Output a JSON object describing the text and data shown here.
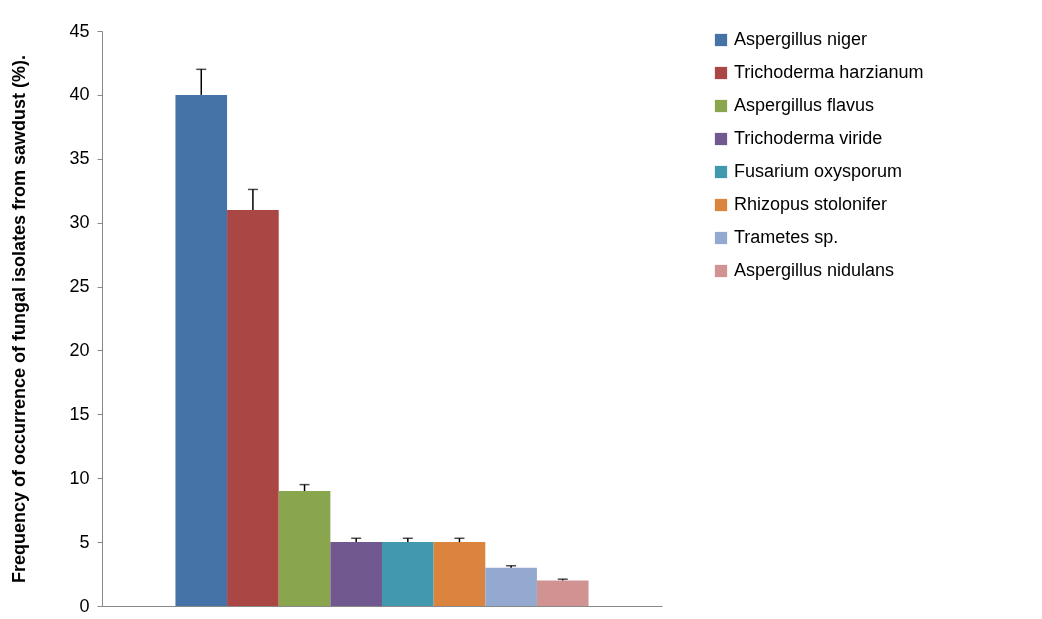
{
  "chart_data": {
    "type": "bar",
    "ylabel": "Frequency of occurrence of fungal isolates from sawdust (%).",
    "categories": [
      null
    ],
    "ylim": [
      0,
      45
    ],
    "yticks": [
      0,
      5,
      10,
      15,
      20,
      25,
      30,
      35,
      40,
      45
    ],
    "grid": false,
    "legend": "right",
    "series": [
      {
        "name": "Aspergillus niger",
        "color": "#4572a7",
        "values": [
          40
        ],
        "errors": [
          [
            40,
            42
          ]
        ]
      },
      {
        "name": "Trichoderma harzianum",
        "color": "#aa4643",
        "values": [
          31
        ],
        "errors": [
          [
            31,
            32.6
          ]
        ]
      },
      {
        "name": "Aspergillus flavus",
        "color": "#89a54e",
        "values": [
          9
        ],
        "errors": [
          [
            9,
            9.5
          ]
        ]
      },
      {
        "name": "Trichoderma viride",
        "color": "#71588f",
        "values": [
          5
        ],
        "errors": [
          [
            5,
            5.3
          ]
        ]
      },
      {
        "name": "Fusarium oxysporum",
        "color": "#4198af",
        "values": [
          5
        ],
        "errors": [
          [
            5,
            5.3
          ]
        ]
      },
      {
        "name": "Rhizopus stolonifer",
        "color": "#db843d",
        "values": [
          5
        ],
        "errors": [
          [
            5,
            5.3
          ]
        ]
      },
      {
        "name": "Trametes sp.",
        "color": "#93a9cf",
        "values": [
          3
        ],
        "errors": [
          [
            3,
            3.15
          ]
        ]
      },
      {
        "name": "Aspergillus nidulans",
        "color": "#d19392",
        "values": [
          2
        ],
        "errors": [
          [
            2,
            2.1
          ]
        ]
      }
    ]
  }
}
